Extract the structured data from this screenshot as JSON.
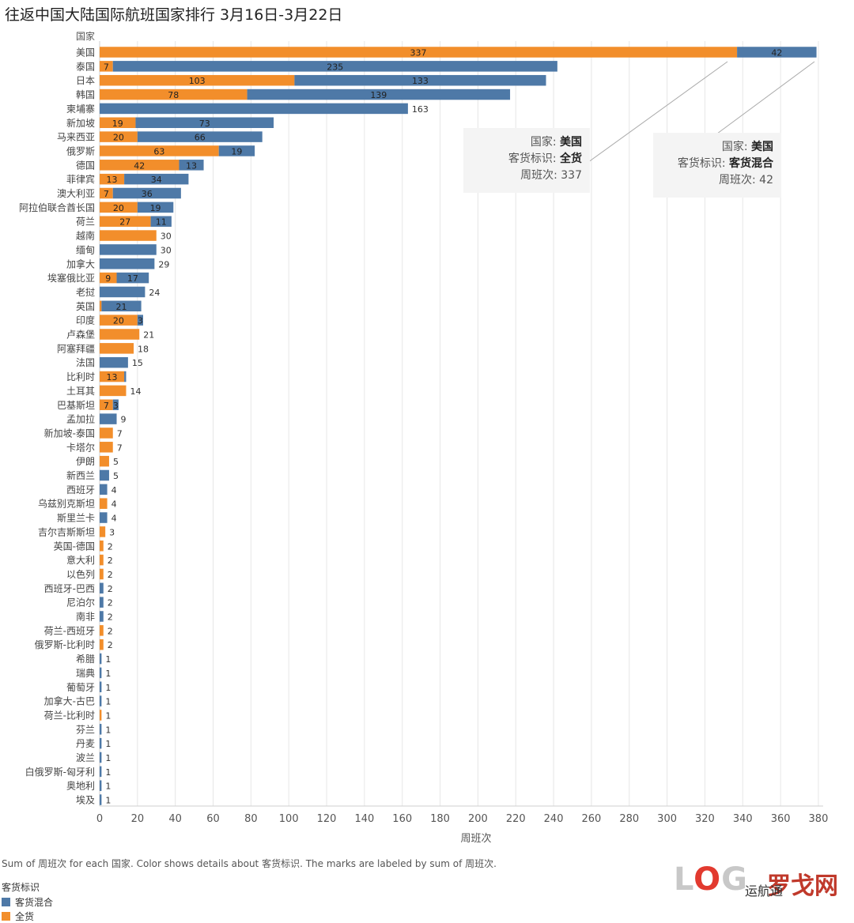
{
  "title": "往返中国大陆国际航班国家排行 3月16日-3月22日",
  "colors": {
    "mixed": "#4e79a7",
    "cargo": "#f28e2b",
    "grid": "#e6e6e6",
    "axis": "#666666"
  },
  "chart_data": {
    "type": "bar",
    "orientation": "horizontal",
    "stacked": true,
    "row_header": "国家",
    "xlabel": "周班次",
    "xlim": [
      0,
      380
    ],
    "xticks": [
      0,
      20,
      40,
      60,
      80,
      100,
      120,
      140,
      160,
      180,
      200,
      220,
      240,
      260,
      280,
      300,
      320,
      340,
      360,
      380
    ],
    "grid": true,
    "series": [
      {
        "name": "全货",
        "color": "#f28e2b",
        "values": [
          337,
          7,
          103,
          78,
          0,
          19,
          20,
          63,
          42,
          13,
          7,
          20,
          27,
          30,
          0,
          0,
          9,
          0,
          1,
          20,
          21,
          18,
          0,
          13,
          14,
          7,
          0,
          7,
          7,
          5,
          0,
          0,
          4,
          0,
          3,
          2,
          2,
          2,
          0,
          0,
          0,
          2,
          2,
          0,
          0,
          0,
          0,
          1,
          0,
          0,
          0,
          0,
          0,
          0
        ]
      },
      {
        "name": "客货混合",
        "color": "#4e79a7",
        "values": [
          42,
          235,
          133,
          139,
          163,
          73,
          66,
          19,
          13,
          34,
          36,
          19,
          11,
          0,
          30,
          29,
          17,
          24,
          21,
          3,
          0,
          0,
          15,
          1,
          0,
          3,
          9,
          0,
          0,
          0,
          5,
          4,
          0,
          4,
          0,
          0,
          0,
          0,
          2,
          2,
          2,
          0,
          0,
          1,
          1,
          1,
          1,
          0,
          1,
          1,
          1,
          1,
          1,
          1
        ]
      }
    ],
    "categories": [
      "美国",
      "泰国",
      "日本",
      "韩国",
      "柬埔寨",
      "新加坡",
      "马来西亚",
      "俄罗斯",
      "德国",
      "菲律宾",
      "澳大利亚",
      "阿拉伯联合酋长国",
      "荷兰",
      "越南",
      "缅甸",
      "加拿大",
      "埃塞俄比亚",
      "老挝",
      "英国",
      "印度",
      "卢森堡",
      "阿塞拜疆",
      "法国",
      "比利时",
      "土耳其",
      "巴基斯坦",
      "孟加拉",
      "新加坡-泰国",
      "卡塔尔",
      "伊朗",
      "新西兰",
      "西班牙",
      "乌兹别克斯坦",
      "斯里兰卡",
      "吉尔吉斯斯坦",
      "英国-德国",
      "意大利",
      "以色列",
      "西班牙-巴西",
      "尼泊尔",
      "南非",
      "荷兰-西班牙",
      "俄罗斯-比利时",
      "希腊",
      "瑞典",
      "葡萄牙",
      "加拿大-古巴",
      "荷兰-比利时",
      "芬兰",
      "丹麦",
      "波兰",
      "白俄罗斯-匈牙利",
      "奥地利",
      "埃及"
    ],
    "segment_labels": [
      [
        "337",
        "42"
      ],
      [
        "7",
        "235"
      ],
      [
        "103",
        "133"
      ],
      [
        "78",
        "139"
      ],
      [
        null,
        "163"
      ],
      [
        "19",
        "73"
      ],
      [
        "20",
        "66"
      ],
      [
        "63",
        "19"
      ],
      [
        "42",
        "13"
      ],
      [
        "13",
        "34"
      ],
      [
        "7",
        "36"
      ],
      [
        "20",
        "19"
      ],
      [
        "27",
        "11"
      ],
      [
        "30",
        null
      ],
      [
        null,
        "30"
      ],
      [
        null,
        "29"
      ],
      [
        "9",
        "17"
      ],
      [
        null,
        "24"
      ],
      [
        null,
        "21"
      ],
      [
        "20",
        "3"
      ],
      [
        "21",
        null
      ],
      [
        "18",
        null
      ],
      [
        null,
        "15"
      ],
      [
        "13",
        null
      ],
      [
        "14",
        null
      ],
      [
        "7",
        "3"
      ],
      [
        null,
        "9"
      ],
      [
        "7",
        null
      ],
      [
        "7",
        null
      ],
      [
        "5",
        null
      ],
      [
        null,
        "5"
      ],
      [
        null,
        "4"
      ],
      [
        "4",
        null
      ],
      [
        null,
        "4"
      ],
      [
        "3",
        null
      ],
      [
        "2",
        null
      ],
      [
        "2",
        null
      ],
      [
        "2",
        null
      ],
      [
        null,
        "2"
      ],
      [
        null,
        "2"
      ],
      [
        null,
        "2"
      ],
      [
        "2",
        null
      ],
      [
        "2",
        null
      ],
      [
        null,
        "1"
      ],
      [
        null,
        "1"
      ],
      [
        null,
        "1"
      ],
      [
        null,
        "1"
      ],
      [
        "1",
        null
      ],
      [
        null,
        "1"
      ],
      [
        null,
        "1"
      ],
      [
        null,
        "1"
      ],
      [
        null,
        "1"
      ],
      [
        null,
        "1"
      ],
      [
        null,
        "1"
      ]
    ],
    "legend": {
      "title": "客货标识",
      "items": [
        "客货混合",
        "全货"
      ],
      "position": "bottom-left"
    },
    "footnote": "Sum of 周班次 for each 国家. Color shows details about 客货标识. The marks are labeled by sum of 周班次."
  },
  "tooltips": [
    {
      "country_key": "国家:",
      "country": "美国",
      "type_key": "客货标识:",
      "type": "全货",
      "value_key": "周班次:",
      "value": "337"
    },
    {
      "country_key": "国家:",
      "country": "美国",
      "type_key": "客货标识:",
      "type": "客货混合",
      "value_key": "周班次:",
      "value": "42"
    }
  ],
  "watermark": {
    "logo": "LOG",
    "cn": "罗戈网",
    "wechat": "运航通"
  }
}
